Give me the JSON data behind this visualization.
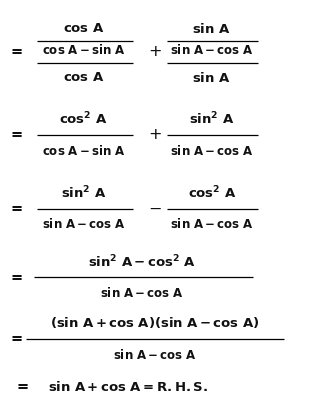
{
  "bg_color": "#ffffff",
  "text_color": "#111111",
  "figsize": [
    3.09,
    4.09
  ],
  "dpi": 100
}
